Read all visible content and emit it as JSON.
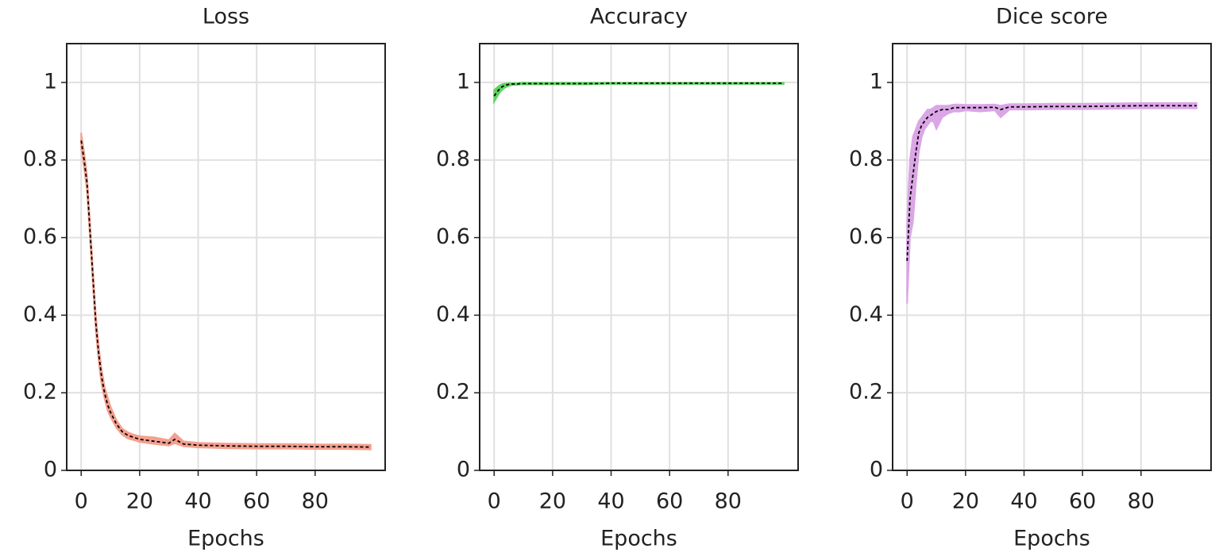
{
  "chart_data": [
    {
      "type": "line",
      "title": "Loss",
      "xlabel": "Epochs",
      "x": [
        0,
        1,
        2,
        3,
        4,
        5,
        6,
        7,
        8,
        9,
        10,
        12,
        14,
        16,
        18,
        20,
        25,
        30,
        32,
        35,
        40,
        50,
        60,
        70,
        80,
        90,
        99
      ],
      "values": [
        0.85,
        0.8,
        0.74,
        0.62,
        0.5,
        0.38,
        0.3,
        0.24,
        0.2,
        0.17,
        0.15,
        0.12,
        0.1,
        0.09,
        0.085,
        0.08,
        0.075,
        0.07,
        0.08,
        0.068,
        0.065,
        0.063,
        0.062,
        0.062,
        0.061,
        0.061,
        0.06
      ],
      "lower": [
        0.83,
        0.78,
        0.72,
        0.6,
        0.48,
        0.36,
        0.28,
        0.22,
        0.185,
        0.155,
        0.138,
        0.11,
        0.092,
        0.082,
        0.078,
        0.073,
        0.068,
        0.064,
        0.07,
        0.062,
        0.059,
        0.057,
        0.056,
        0.056,
        0.055,
        0.055,
        0.054
      ],
      "upper": [
        0.87,
        0.82,
        0.76,
        0.64,
        0.52,
        0.4,
        0.32,
        0.26,
        0.215,
        0.19,
        0.165,
        0.13,
        0.108,
        0.098,
        0.092,
        0.088,
        0.085,
        0.078,
        0.095,
        0.075,
        0.071,
        0.069,
        0.068,
        0.068,
        0.067,
        0.067,
        0.066
      ],
      "band_color": "#f4a08f",
      "line_color": "#000000",
      "xlim": [
        -4.95,
        103.95
      ],
      "ylim": [
        0,
        1.1
      ],
      "xticks": [
        0,
        20,
        40,
        60,
        80
      ],
      "yticks": [
        0.0,
        0.2,
        0.4,
        0.6,
        0.8,
        1.0
      ],
      "grid": true
    },
    {
      "type": "line",
      "title": "Accuracy",
      "xlabel": "Epochs",
      "x": [
        0,
        1,
        2,
        3,
        4,
        5,
        6,
        7,
        8,
        9,
        10,
        12,
        14,
        16,
        18,
        20,
        25,
        30,
        32,
        35,
        40,
        50,
        60,
        70,
        80,
        90,
        99
      ],
      "values": [
        0.965,
        0.975,
        0.985,
        0.99,
        0.993,
        0.995,
        0.996,
        0.996,
        0.996,
        0.997,
        0.997,
        0.997,
        0.997,
        0.997,
        0.997,
        0.997,
        0.997,
        0.997,
        0.997,
        0.997,
        0.998,
        0.998,
        0.998,
        0.998,
        0.998,
        0.998,
        0.998
      ],
      "lower": [
        0.95,
        0.963,
        0.975,
        0.983,
        0.988,
        0.991,
        0.993,
        0.994,
        0.994,
        0.995,
        0.995,
        0.995,
        0.995,
        0.995,
        0.995,
        0.995,
        0.995,
        0.995,
        0.995,
        0.996,
        0.996,
        0.996,
        0.996,
        0.996,
        0.996,
        0.996,
        0.996
      ],
      "upper": [
        0.98,
        0.987,
        0.993,
        0.996,
        0.997,
        0.998,
        0.998,
        0.998,
        0.998,
        0.999,
        0.999,
        0.999,
        0.999,
        0.999,
        0.999,
        0.999,
        0.999,
        0.999,
        0.999,
        0.999,
        0.999,
        0.999,
        0.999,
        0.999,
        0.999,
        0.999,
        0.999
      ],
      "band_color": "#5fd35f",
      "line_color": "#000000",
      "xlim": [
        -4.95,
        103.95
      ],
      "ylim": [
        0,
        1.1
      ],
      "xticks": [
        0,
        20,
        40,
        60,
        80
      ],
      "yticks": [
        0.0,
        0.2,
        0.4,
        0.6,
        0.8,
        1.0
      ],
      "grid": true
    },
    {
      "type": "line",
      "title": "Dice score",
      "xlabel": "Epochs",
      "x": [
        0,
        1,
        2,
        3,
        4,
        5,
        6,
        7,
        8,
        9,
        10,
        12,
        14,
        16,
        18,
        20,
        25,
        30,
        32,
        35,
        40,
        50,
        60,
        70,
        80,
        90,
        99
      ],
      "values": [
        0.54,
        0.7,
        0.76,
        0.82,
        0.87,
        0.89,
        0.9,
        0.91,
        0.915,
        0.92,
        0.925,
        0.93,
        0.93,
        0.935,
        0.935,
        0.935,
        0.935,
        0.936,
        0.93,
        0.937,
        0.937,
        0.938,
        0.938,
        0.939,
        0.94,
        0.94,
        0.94
      ],
      "lower": [
        0.43,
        0.6,
        0.64,
        0.74,
        0.82,
        0.86,
        0.88,
        0.89,
        0.9,
        0.9,
        0.88,
        0.91,
        0.92,
        0.925,
        0.925,
        0.928,
        0.925,
        0.928,
        0.91,
        0.93,
        0.93,
        0.931,
        0.931,
        0.932,
        0.933,
        0.933,
        0.933
      ],
      "upper": [
        0.64,
        0.8,
        0.86,
        0.88,
        0.9,
        0.91,
        0.92,
        0.93,
        0.93,
        0.935,
        0.94,
        0.94,
        0.94,
        0.943,
        0.943,
        0.942,
        0.942,
        0.943,
        0.94,
        0.944,
        0.944,
        0.945,
        0.945,
        0.946,
        0.947,
        0.947,
        0.947
      ],
      "band_color": "#dba6e6",
      "line_color": "#000000",
      "xlim": [
        -4.95,
        103.95
      ],
      "ylim": [
        0,
        1.1
      ],
      "xticks": [
        0,
        20,
        40,
        60,
        80
      ],
      "yticks": [
        0.0,
        0.2,
        0.4,
        0.6,
        0.8,
        1.0
      ],
      "grid": true
    }
  ]
}
